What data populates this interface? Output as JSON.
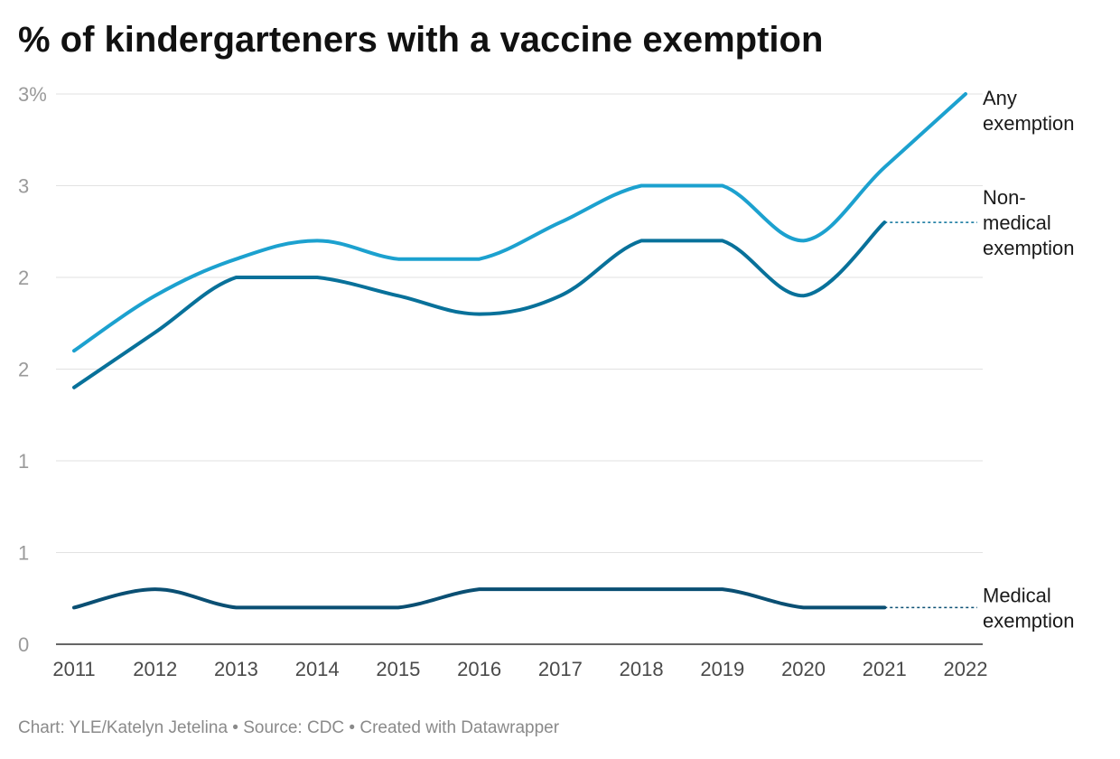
{
  "title": "% of kindergarteners with a vaccine exemption",
  "footer": "Chart: YLE/Katelyn Jetelina • Source: CDC • Created with Datawrapper",
  "chart_data": {
    "type": "line",
    "x": [
      2011,
      2012,
      2013,
      2014,
      2015,
      2016,
      2017,
      2018,
      2019,
      2020,
      2021,
      2022
    ],
    "x_tick_labels": [
      "2011",
      "2012",
      "2013",
      "2014",
      "2015",
      "2016",
      "2017",
      "2018",
      "2019",
      "2020",
      "2021",
      "2022"
    ],
    "y_ticks": [
      0,
      0.5,
      1.0,
      1.5,
      2.0,
      2.5,
      3.0
    ],
    "y_tick_labels": [
      "0",
      "1",
      "1",
      "2",
      "2",
      "3",
      "3%"
    ],
    "ylim": [
      0,
      3.0
    ],
    "grid": true,
    "series": [
      {
        "name": "Any exemption",
        "label_lines": [
          "Any",
          "exemption"
        ],
        "color": "#1ca1cf",
        "values": [
          1.6,
          1.9,
          2.1,
          2.2,
          2.1,
          2.1,
          2.3,
          2.5,
          2.5,
          2.2,
          2.6,
          3.0
        ]
      },
      {
        "name": "Non-medical exemption",
        "label_lines": [
          "Non-",
          "medical",
          "exemption"
        ],
        "color": "#08719a",
        "values": [
          1.4,
          1.7,
          2.0,
          2.0,
          1.9,
          1.8,
          1.9,
          2.2,
          2.2,
          1.9,
          2.3,
          null
        ]
      },
      {
        "name": "Medical exemption",
        "label_lines": [
          "Medical",
          "exemption"
        ],
        "color": "#0a4f73",
        "values": [
          0.2,
          0.3,
          0.2,
          0.2,
          0.2,
          0.3,
          0.3,
          0.3,
          0.3,
          0.2,
          0.2,
          null
        ]
      }
    ]
  }
}
